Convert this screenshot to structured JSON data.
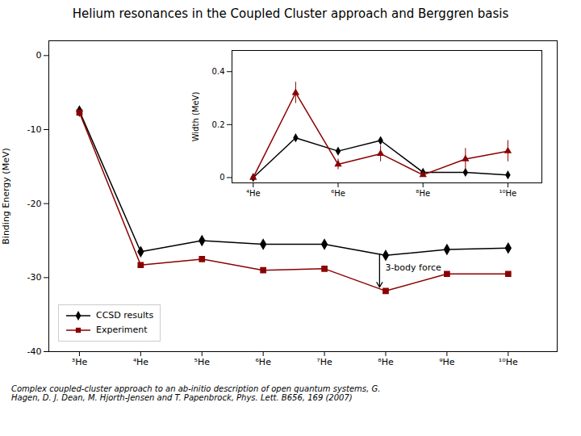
{
  "chart_data": [
    {
      "type": "line",
      "title": "Helium resonances in the Coupled Cluster approach and Berggren basis",
      "footnote": "Complex coupled-cluster approach to an ab-initio description of open quantum systems, G.\nHagen, D. J. Dean, M. Hjorth-Jensen and T. Papenbrock, Phys. Lett. B656, 169 (2007)",
      "ylabel": "Binding Energy (MeV)",
      "x": [
        3,
        4,
        5,
        6,
        7,
        8,
        9,
        10
      ],
      "xlim": [
        2.5,
        10.8
      ],
      "xticks": [
        {
          "value": 3,
          "label": "³He"
        },
        {
          "value": 4,
          "label": "⁴He"
        },
        {
          "value": 5,
          "label": "⁵He"
        },
        {
          "value": 6,
          "label": "⁶He"
        },
        {
          "value": 7,
          "label": "⁷He"
        },
        {
          "value": 8,
          "label": "⁸He"
        },
        {
          "value": 9,
          "label": "⁹He"
        },
        {
          "value": 10,
          "label": "¹⁰He"
        }
      ],
      "ylim": [
        -40,
        2
      ],
      "yticks": [
        0,
        -10,
        -20,
        -30,
        -40
      ],
      "legend": "lower left",
      "series": [
        {
          "name": "CCSD results",
          "color": "black",
          "marker": "diamond",
          "values": [
            -7.5,
            -26.5,
            -25.0,
            -25.5,
            -25.5,
            -27.0,
            -26.2,
            -26.0
          ]
        },
        {
          "name": "Experiment",
          "color": "#8B0000",
          "marker": "square",
          "values": [
            -7.7,
            -28.3,
            -27.5,
            -29.0,
            -28.8,
            -31.8,
            -29.5,
            -29.5
          ]
        }
      ],
      "annotations": [
        {
          "text": "3-body force",
          "x": 7.9,
          "y_start": -26.8,
          "y_end": -31.3
        }
      ]
    },
    {
      "type": "line",
      "ylabel": "Width (MeV)",
      "x": [
        4,
        5,
        6,
        7,
        8,
        9,
        10
      ],
      "xlim": [
        3.5,
        10.8
      ],
      "xticks": [
        {
          "value": 4,
          "label": "⁴He"
        },
        {
          "value": 6,
          "label": "⁶He"
        },
        {
          "value": 8,
          "label": "⁸He"
        },
        {
          "value": 10,
          "label": "¹⁰He"
        }
      ],
      "ylim": [
        -0.02,
        0.48
      ],
      "yticks": [
        0,
        0.2,
        0.4
      ],
      "series": [
        {
          "color": "black",
          "marker": "diamond",
          "values": [
            0.0,
            0.15,
            0.1,
            0.14,
            0.02,
            0.02,
            0.01
          ]
        },
        {
          "color": "#8B0000",
          "marker": "triangle",
          "values": [
            0.0,
            0.32,
            0.05,
            0.09,
            0.01,
            0.07,
            0.1
          ],
          "errors": [
            0.0,
            0.04,
            0.02,
            0.03,
            0.005,
            0.04,
            0.04
          ]
        }
      ]
    }
  ]
}
